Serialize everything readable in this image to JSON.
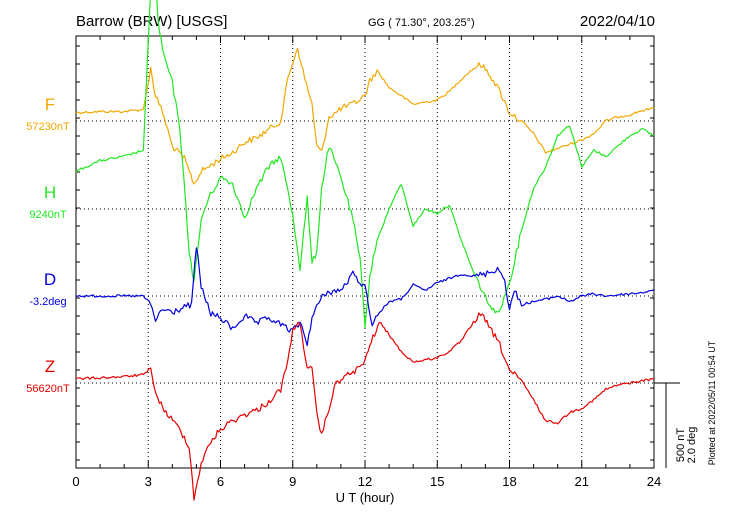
{
  "header": {
    "station": "Barrow (BRW)  [USGS]",
    "coords": "GG ( 71.30°, 203.25°)",
    "date": "2022/04/10"
  },
  "side_note": "Plotted at 2022/05/11 00:54 UT",
  "scale": {
    "line1": "500 nT",
    "line2": "2.0 deg"
  },
  "chart_data": {
    "type": "line",
    "title": "Barrow (BRW)  [USGS]",
    "xlabel": "U T (hour)",
    "xlim": [
      0,
      24
    ],
    "xticks": [
      "0",
      "3",
      "6",
      "9",
      "12",
      "15",
      "18",
      "21",
      "24"
    ],
    "grid": true,
    "scale_bar": {
      "H": "500 nT",
      "D": "2.0 deg"
    },
    "series": [
      {
        "name": "F",
        "baseline": "57230nT",
        "color": "#f0a800",
        "x": [
          0,
          1,
          2,
          2.8,
          3.1,
          3.3,
          3.6,
          4,
          4.5,
          4.9,
          5.2,
          5.6,
          6,
          6.5,
          7,
          7.5,
          8,
          8.5,
          8.8,
          9,
          9.2,
          9.5,
          9.8,
          10,
          10.2,
          10.5,
          10.8,
          11,
          11.5,
          12,
          12.2,
          12.5,
          13,
          13.5,
          14,
          14.5,
          15,
          15.5,
          16,
          16.5,
          16.8,
          17.2,
          17.6,
          18,
          18.5,
          19,
          19.5,
          20,
          20.5,
          21,
          21.5,
          22,
          22.5,
          23,
          23.5,
          24
        ],
        "y": [
          40,
          45,
          45,
          55,
          250,
          120,
          40,
          -120,
          -180,
          -300,
          -240,
          -210,
          -180,
          -150,
          -100,
          -80,
          -40,
          0,
          200,
          280,
          350,
          200,
          80,
          -120,
          -150,
          20,
          40,
          60,
          80,
          120,
          190,
          240,
          160,
          120,
          80,
          90,
          100,
          140,
          200,
          250,
          270,
          220,
          140,
          40,
          0,
          -60,
          -150,
          -130,
          -110,
          -90,
          -60,
          0,
          20,
          30,
          50,
          60
        ]
      },
      {
        "name": "H",
        "baseline": "9240nT",
        "color": "#22e622",
        "x": [
          0,
          1,
          2,
          2.8,
          3.1,
          3.2,
          3.4,
          3.6,
          4,
          4.3,
          4.7,
          4.9,
          5.2,
          5.5,
          6,
          6.5,
          7,
          7.5,
          8,
          8.5,
          9,
          9.3,
          9.6,
          9.8,
          10,
          10.2,
          10.5,
          11,
          11.5,
          11.8,
          12,
          12.2,
          12.5,
          13,
          13.5,
          14,
          14.5,
          15,
          15.5,
          16,
          16.5,
          17,
          17.4,
          17.7,
          18,
          18.5,
          19,
          19.5,
          20,
          20.5,
          21,
          21.5,
          22,
          22.5,
          23,
          23.5,
          24
        ],
        "y": [
          180,
          230,
          250,
          280,
          1050,
          1350,
          900,
          750,
          600,
          400,
          -200,
          -350,
          -50,
          50,
          150,
          120,
          -40,
          100,
          200,
          250,
          -30,
          -280,
          50,
          -260,
          -200,
          100,
          300,
          150,
          -50,
          -250,
          -550,
          -320,
          -150,
          0,
          120,
          -80,
          0,
          -20,
          20,
          -150,
          -300,
          -420,
          -500,
          -450,
          -350,
          -100,
          100,
          200,
          350,
          400,
          200,
          280,
          250,
          300,
          350,
          380,
          350
        ]
      },
      {
        "name": "D",
        "baseline": "-3.2deg",
        "color": "#0000e0",
        "x": [
          0,
          1,
          2,
          2.8,
          3.1,
          3.3,
          3.6,
          4,
          4.5,
          4.8,
          5,
          5.2,
          5.6,
          6,
          6.5,
          7,
          7.5,
          8,
          8.5,
          9,
          9.3,
          9.6,
          9.8,
          10,
          10.3,
          10.6,
          11,
          11.5,
          12,
          12.3,
          12.6,
          13,
          13.5,
          14,
          14.5,
          15,
          15.5,
          16,
          16.5,
          17,
          17.5,
          17.8,
          18,
          18.2,
          18.5,
          19,
          19.5,
          20,
          20.5,
          21,
          21.5,
          22,
          22.5,
          23,
          23.5,
          24
        ],
        "y": [
          0,
          0,
          0,
          0,
          -0.8,
          -2.2,
          -1.2,
          -1.5,
          -1.0,
          -0.8,
          4.6,
          0.8,
          -1.6,
          -2.0,
          -3.0,
          -1.8,
          -2.5,
          -2.0,
          -2.6,
          -3.2,
          -2.4,
          -4.3,
          -2.0,
          -1.0,
          0.2,
          0.4,
          0.5,
          2.0,
          0.8,
          -2.5,
          -1.5,
          -0.5,
          -0.3,
          1.0,
          0.5,
          1.2,
          1.6,
          2.0,
          1.8,
          2.0,
          2.5,
          1.5,
          -1.3,
          0.5,
          -0.8,
          -0.5,
          -0.3,
          0,
          -0.5,
          0,
          0.2,
          0,
          0.1,
          0.2,
          0.3,
          0.6
        ]
      },
      {
        "name": "Z",
        "baseline": "56620nT",
        "color": "#e60000",
        "x": [
          0,
          1,
          2,
          2.8,
          3.1,
          3.4,
          3.8,
          4.3,
          4.7,
          4.9,
          5.2,
          5.6,
          6,
          6.5,
          7,
          7.5,
          8,
          8.5,
          8.8,
          9,
          9.3,
          9.6,
          9.8,
          10,
          10.2,
          10.5,
          10.8,
          11,
          11.5,
          12,
          12.2,
          12.6,
          13,
          13.5,
          14,
          14.5,
          15,
          15.5,
          16,
          16.5,
          16.8,
          17.2,
          17.6,
          18,
          18.5,
          19,
          19.5,
          20,
          20.5,
          21,
          21.5,
          22,
          22.5,
          23,
          23.5,
          24
        ],
        "y": [
          20,
          25,
          30,
          40,
          60,
          -80,
          -150,
          -220,
          -300,
          -550,
          -380,
          -280,
          -220,
          -180,
          -150,
          -130,
          -90,
          -30,
          100,
          260,
          280,
          80,
          60,
          -150,
          -250,
          -120,
          0,
          20,
          50,
          100,
          180,
          290,
          230,
          150,
          100,
          110,
          120,
          150,
          200,
          290,
          330,
          260,
          180,
          60,
          10,
          -80,
          -180,
          -190,
          -140,
          -120,
          -80,
          -30,
          -10,
          0,
          10,
          20
        ]
      }
    ]
  }
}
